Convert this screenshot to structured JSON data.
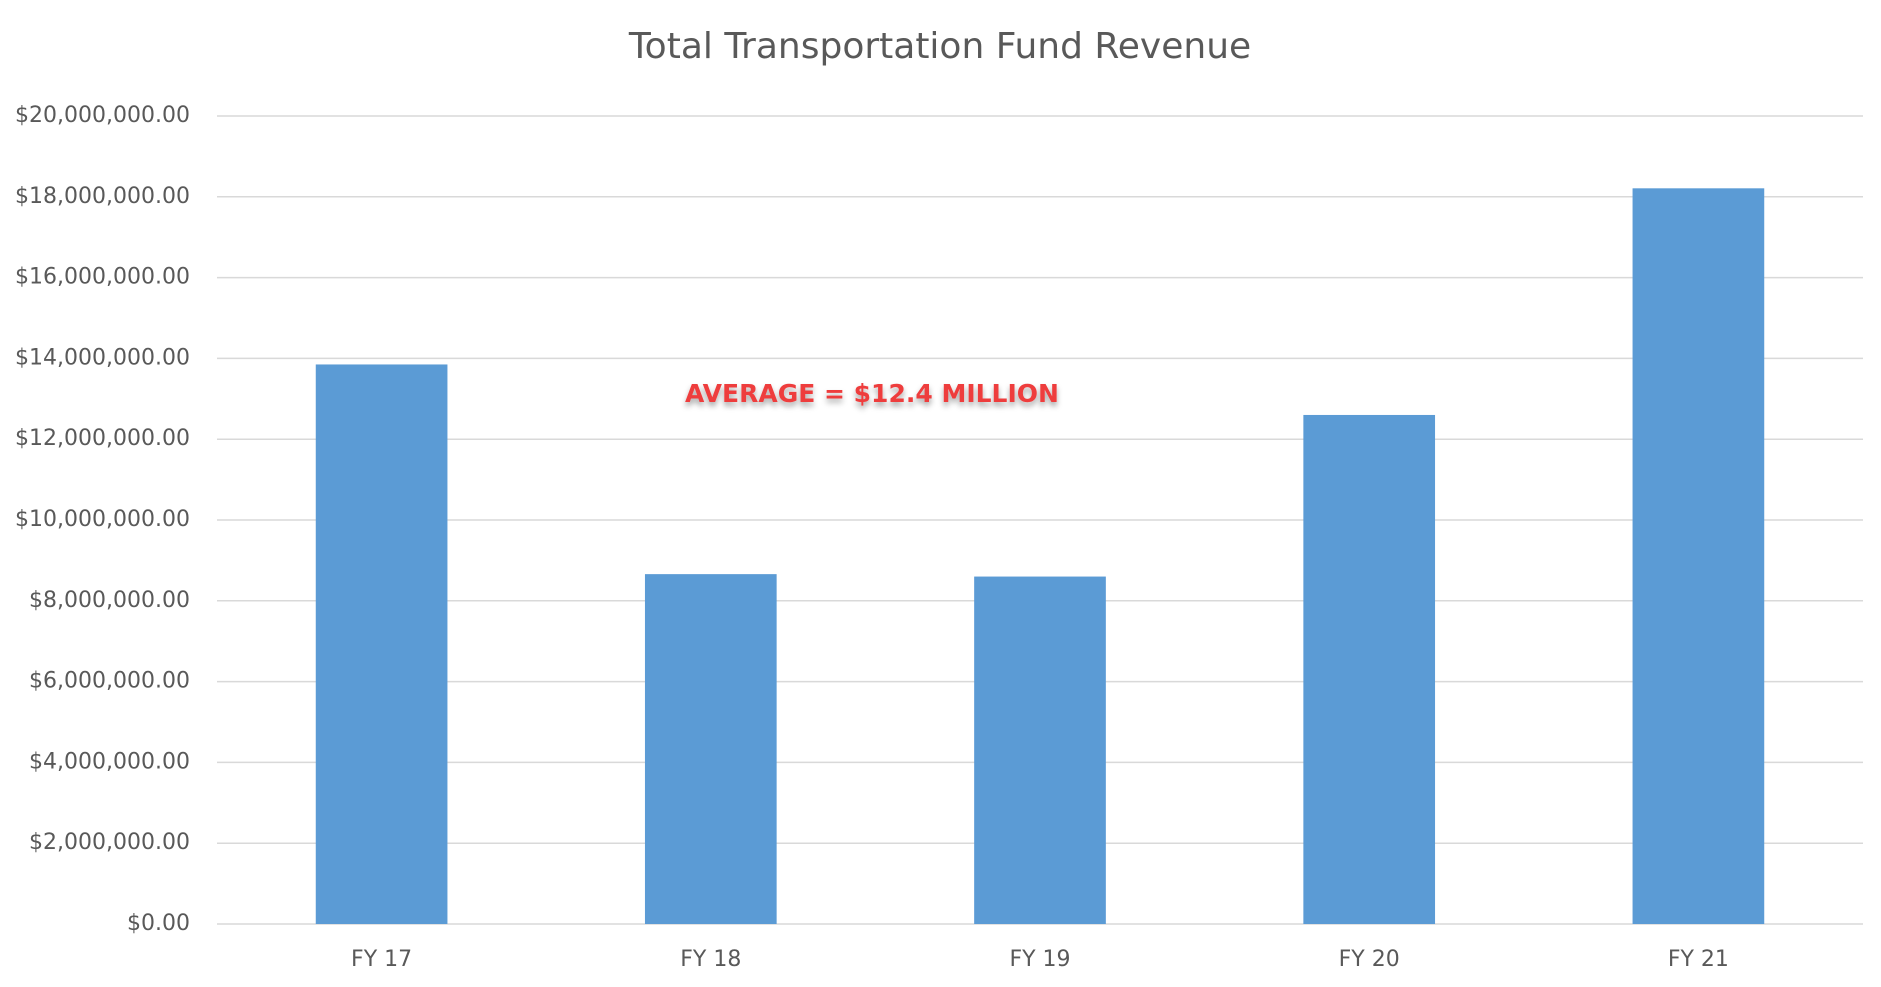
{
  "chart_data": {
    "type": "bar",
    "title": "Total Transportation Fund Revenue",
    "categories": [
      "FY 17",
      "FY 18",
      "FY 19",
      "FY 20",
      "FY 21"
    ],
    "values": [
      13850000,
      8660000,
      8600000,
      12600000,
      18210000
    ],
    "color": "#5b9bd5",
    "ylim": [
      0,
      20000000
    ],
    "yticks": [
      {
        "value": 0,
        "label": "$0.00"
      },
      {
        "value": 2000000,
        "label": "$2,000,000.00"
      },
      {
        "value": 4000000,
        "label": "$4,000,000.00"
      },
      {
        "value": 6000000,
        "label": "$6,000,000.00"
      },
      {
        "value": 8000000,
        "label": "$8,000,000.00"
      },
      {
        "value": 10000000,
        "label": "$10,000,000.00"
      },
      {
        "value": 12000000,
        "label": "$12,000,000.00"
      },
      {
        "value": 14000000,
        "label": "$14,000,000.00"
      },
      {
        "value": 16000000,
        "label": "$16,000,000.00"
      },
      {
        "value": 18000000,
        "label": "$18,000,000.00"
      },
      {
        "value": 20000000,
        "label": "$20,000,000.00"
      }
    ],
    "grid": true,
    "average_line": {
      "value": 12400000,
      "label": "AVERAGE = $12.4 MILLION",
      "color": "#ee3d3d"
    }
  }
}
